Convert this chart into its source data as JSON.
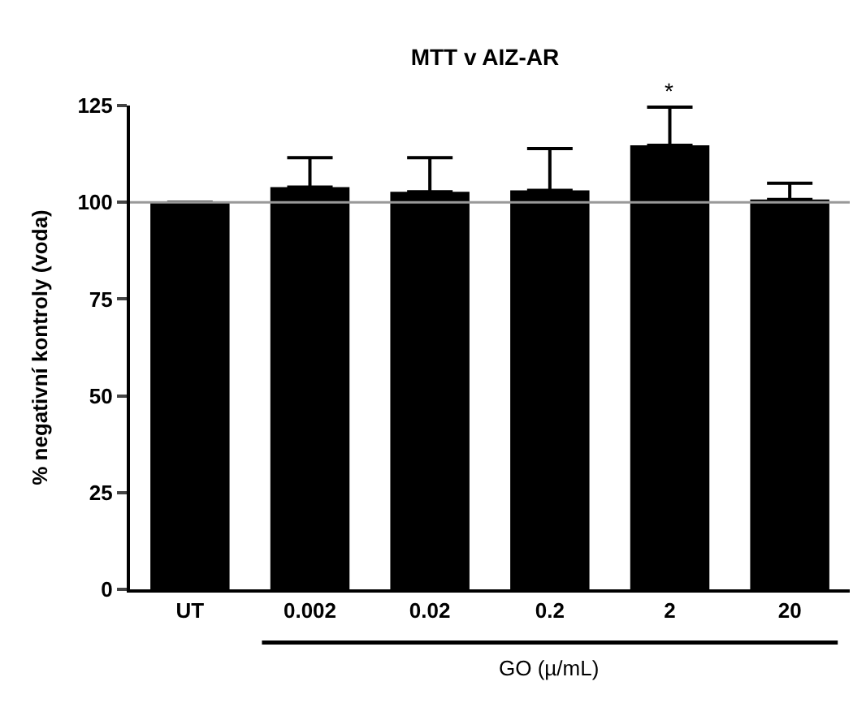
{
  "chart_data": {
    "type": "bar",
    "title": "MTT v AIZ-AR",
    "ylabel": "% negativní kontroly (voda)",
    "xlabel": "GO (µ/mL)",
    "categories": [
      "UT",
      "0.002",
      "0.02",
      "0.2",
      "2",
      "20"
    ],
    "values": [
      100,
      103.9,
      102.7,
      103.1,
      114.7,
      100.7
    ],
    "errors": [
      null,
      [
        103.9,
        111.5
      ],
      [
        102.7,
        111.5
      ],
      [
        103.1,
        113.9
      ],
      [
        114.7,
        124.6
      ],
      [
        100.7,
        104.9
      ]
    ],
    "color": "#000000",
    "ylim": [
      0,
      125
    ],
    "yticks": [
      0,
      25,
      50,
      75,
      100,
      125
    ],
    "ref_lines": [
      {
        "axis": "y",
        "value": 100,
        "color": "#999999"
      }
    ],
    "annotations": [
      {
        "text": "*",
        "x": "2",
        "y": 124.6
      }
    ]
  }
}
